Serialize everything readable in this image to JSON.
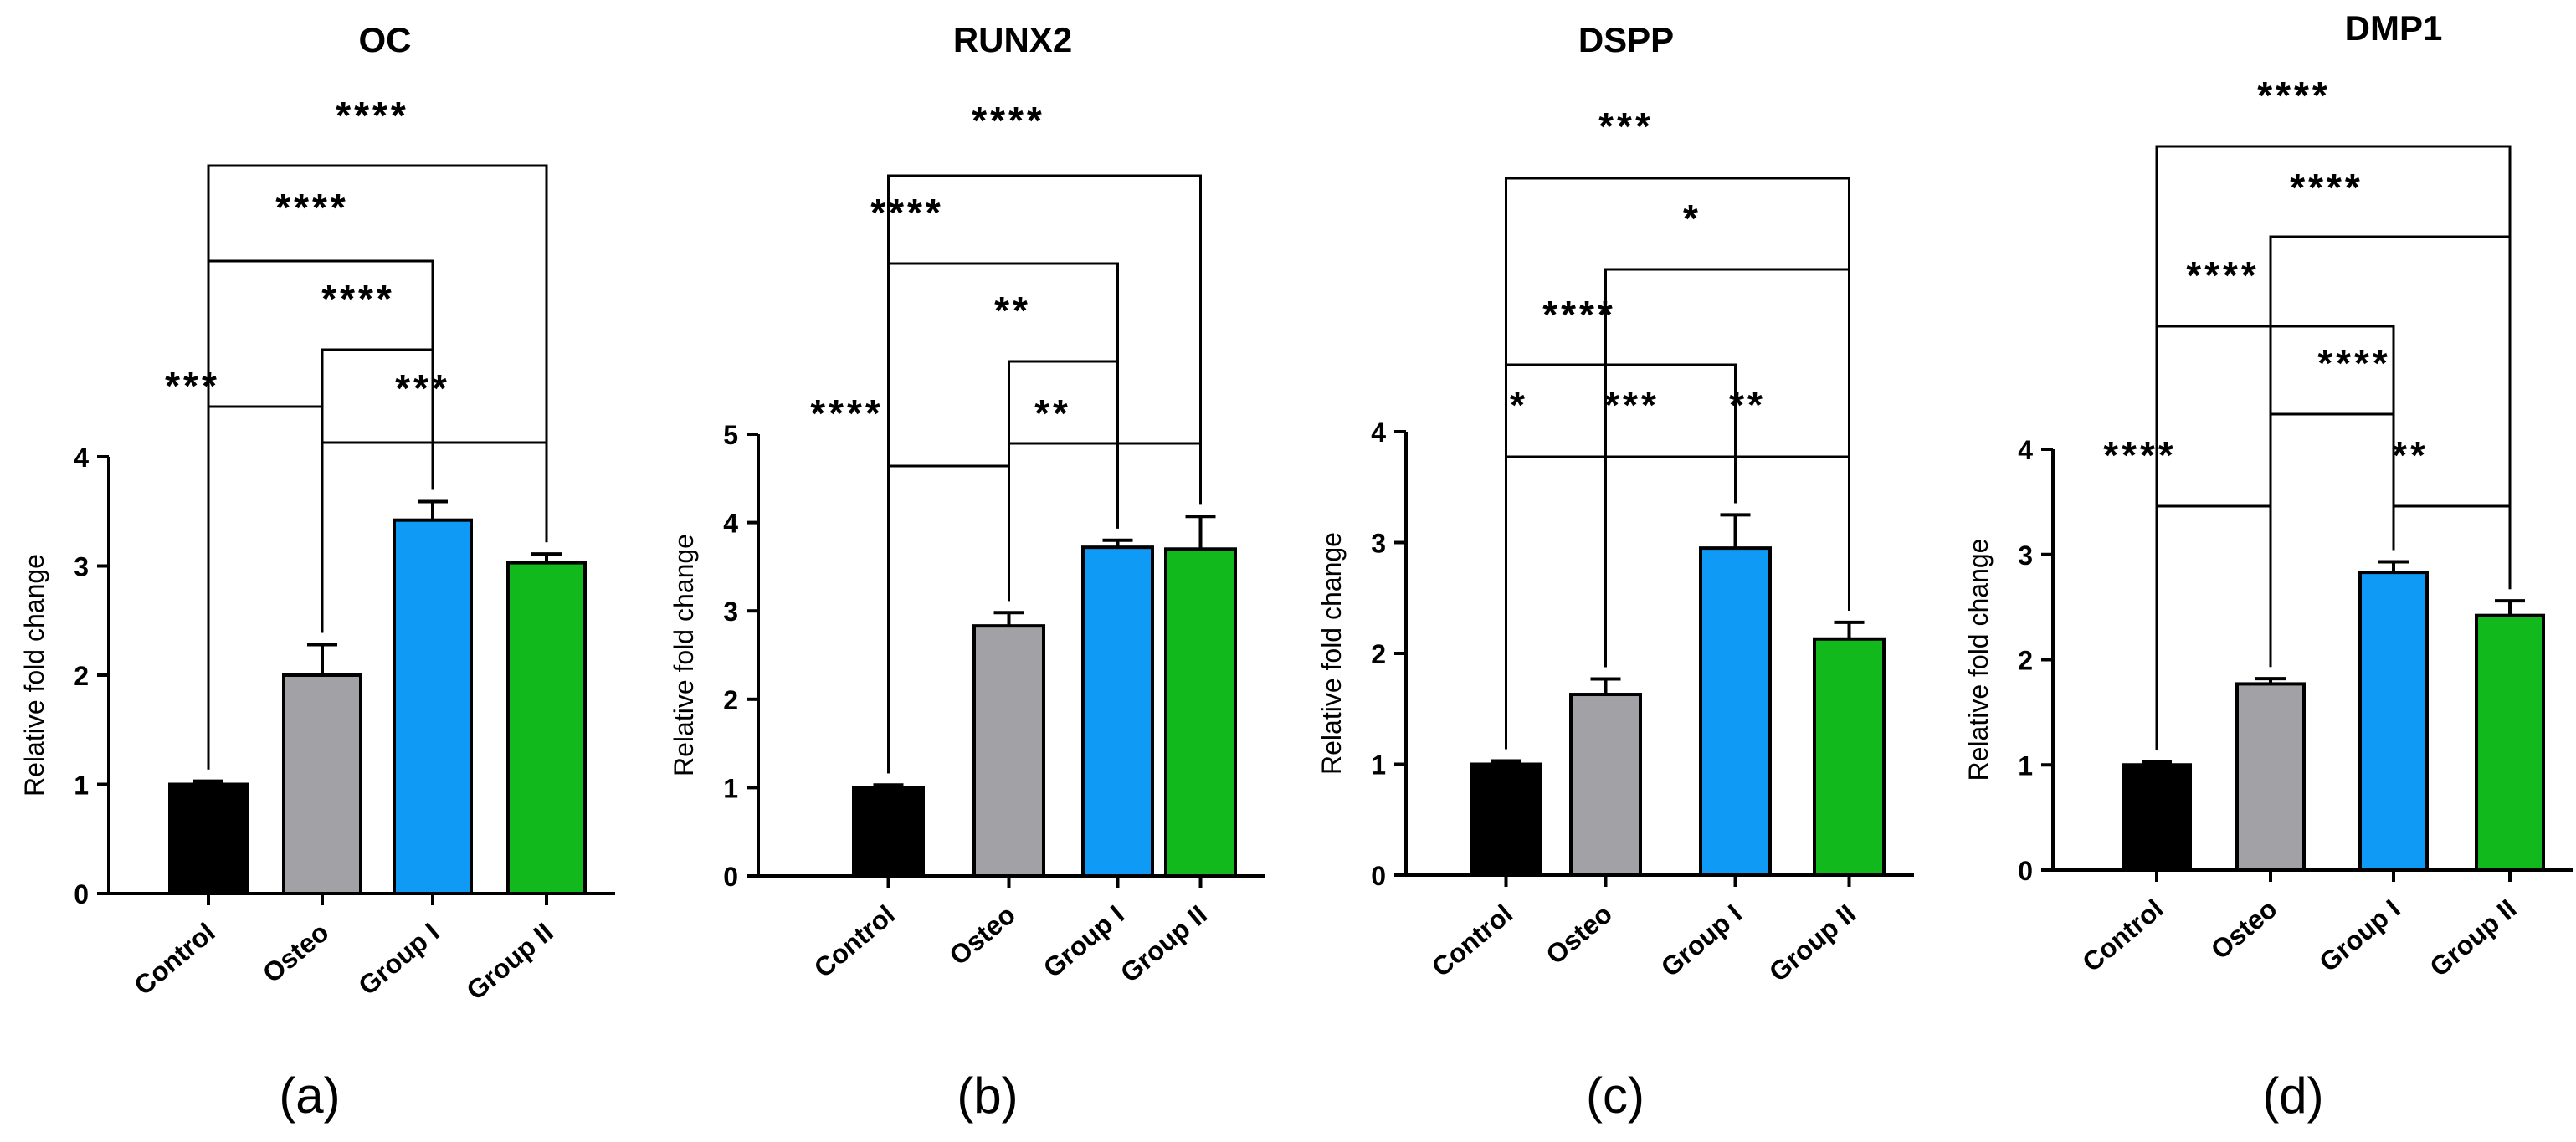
{
  "chart_data": [
    {
      "type": "bar",
      "panel_label": "(a)",
      "title": "OC",
      "ylabel": "Relative fold change",
      "xlabel": "",
      "categories": [
        "Control",
        "Osteo",
        "Group I",
        "Group II"
      ],
      "values": [
        1.0,
        2.0,
        3.42,
        3.03
      ],
      "errors": [
        0.03,
        0.28,
        0.17,
        0.08
      ],
      "colors": [
        "#000000",
        "#a1a1a6",
        "#0f9bf5",
        "#12b91c"
      ],
      "ylim": [
        0,
        4
      ],
      "yticks": [
        0,
        1,
        2,
        3,
        4
      ],
      "comparisons": [
        {
          "from": "Control",
          "to": "Osteo",
          "label": "***"
        },
        {
          "from": "Osteo",
          "to": "Group II",
          "label": "***"
        },
        {
          "from": "Osteo",
          "to": "Group I",
          "label": "****"
        },
        {
          "from": "Control",
          "to": "Group I",
          "label": "****"
        },
        {
          "from": "Control",
          "to": "Group II",
          "label": "****"
        }
      ]
    },
    {
      "type": "bar",
      "panel_label": "(b)",
      "title": "RUNX2",
      "ylabel": "Relative fold change",
      "xlabel": "",
      "categories": [
        "Control",
        "Osteo",
        "Group I",
        "Group II"
      ],
      "values": [
        1.0,
        2.83,
        3.72,
        3.7
      ],
      "errors": [
        0.03,
        0.15,
        0.08,
        0.37
      ],
      "colors": [
        "#000000",
        "#a1a1a6",
        "#0f9bf5",
        "#12b91c"
      ],
      "ylim": [
        0,
        5
      ],
      "yticks": [
        0,
        1,
        2,
        3,
        4,
        5
      ],
      "comparisons": [
        {
          "from": "Control",
          "to": "Osteo",
          "label": "****"
        },
        {
          "from": "Osteo",
          "to": "Group II",
          "label": "**"
        },
        {
          "from": "Osteo",
          "to": "Group I",
          "label": "**"
        },
        {
          "from": "Control",
          "to": "Group I",
          "label": "****"
        },
        {
          "from": "Control",
          "to": "Group II",
          "label": "****"
        }
      ]
    },
    {
      "type": "bar",
      "panel_label": "(c)",
      "title": "DSPP",
      "ylabel": "Relative fold change",
      "xlabel": "",
      "categories": [
        "Control",
        "Osteo",
        "Group I",
        "Group II"
      ],
      "values": [
        1.0,
        1.63,
        2.95,
        2.13
      ],
      "errors": [
        0.03,
        0.14,
        0.3,
        0.15
      ],
      "colors": [
        "#000000",
        "#a1a1a6",
        "#0f9bf5",
        "#12b91c"
      ],
      "ylim": [
        0,
        4
      ],
      "yticks": [
        0,
        1,
        2,
        3,
        4
      ],
      "comparisons": [
        {
          "from": "Control",
          "to": "Osteo",
          "label": "*"
        },
        {
          "from": "Osteo",
          "to": "Group I",
          "label": "***"
        },
        {
          "from": "Group I",
          "to": "Group II",
          "label": "**"
        },
        {
          "from": "Control",
          "to": "Group I",
          "label": "****"
        },
        {
          "from": "Osteo",
          "to": "Group II",
          "label": "*"
        },
        {
          "from": "Control",
          "to": "Group II",
          "label": "***"
        }
      ]
    },
    {
      "type": "bar",
      "panel_label": "(d)",
      "title": "DMP1",
      "ylabel": "Relative fold change",
      "xlabel": "",
      "categories": [
        "Control",
        "Osteo",
        "Group I",
        "Group II"
      ],
      "values": [
        1.0,
        1.77,
        2.83,
        2.42
      ],
      "errors": [
        0.03,
        0.05,
        0.1,
        0.14
      ],
      "colors": [
        "#000000",
        "#a1a1a6",
        "#0f9bf5",
        "#12b91c"
      ],
      "ylim": [
        0,
        4
      ],
      "yticks": [
        0,
        1,
        2,
        3,
        4
      ],
      "comparisons": [
        {
          "from": "Control",
          "to": "Osteo",
          "label": "****"
        },
        {
          "from": "Group I",
          "to": "Group II",
          "label": "**"
        },
        {
          "from": "Osteo",
          "to": "Group I",
          "label": "****"
        },
        {
          "from": "Control",
          "to": "Group I",
          "label": "****"
        },
        {
          "from": "Osteo",
          "to": "Group II",
          "label": "****"
        },
        {
          "from": "Control",
          "to": "Group II",
          "label": "****"
        }
      ]
    }
  ]
}
